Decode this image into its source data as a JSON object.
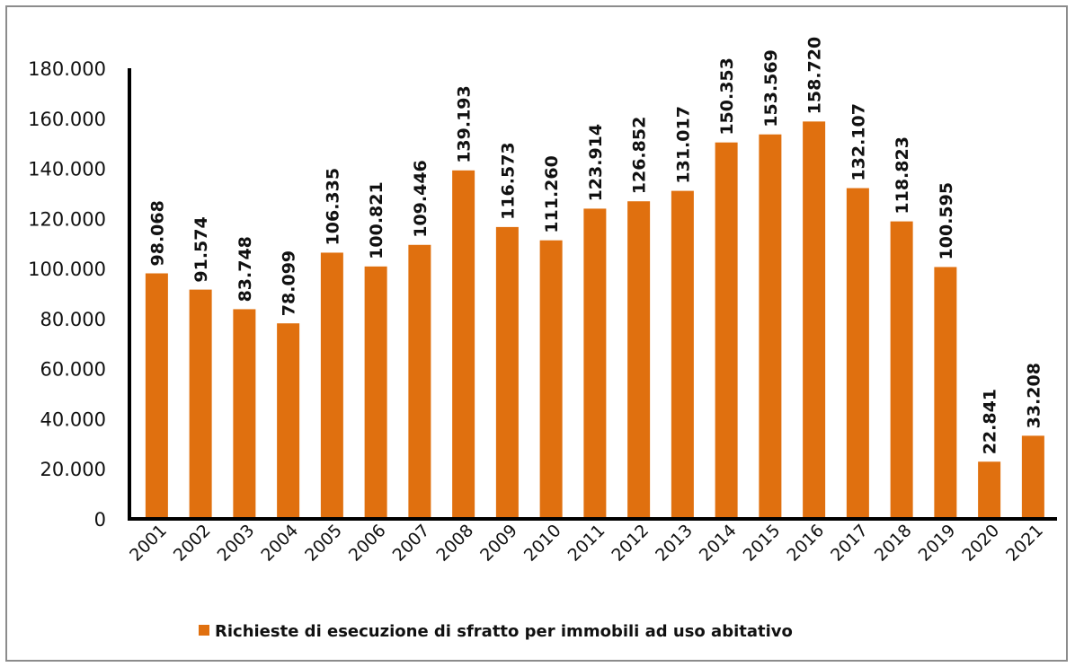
{
  "chart_data": {
    "type": "bar",
    "title": "",
    "xlabel": "",
    "ylabel": "",
    "ylim": [
      0,
      180000
    ],
    "yticks": [
      0,
      20000,
      40000,
      60000,
      80000,
      100000,
      120000,
      140000,
      160000,
      180000
    ],
    "ytick_labels": [
      "0",
      "20.000",
      "40.000",
      "60.000",
      "80.000",
      "100.000",
      "120.000",
      "140.000",
      "160.000",
      "180.000"
    ],
    "grid": false,
    "legend_position": "bottom",
    "categories": [
      "2001",
      "2002",
      "2003",
      "2004",
      "2005",
      "2006",
      "2007",
      "2008",
      "2009",
      "2010",
      "2011",
      "2012",
      "2013",
      "2014",
      "2015",
      "2016",
      "2017",
      "2018",
      "2019",
      "2020",
      "2021"
    ],
    "series": [
      {
        "name": "Richieste di esecuzione di sfratto per immobili ad uso abitativo",
        "color": "#E0700F",
        "values": [
          98068,
          91574,
          83748,
          78099,
          106335,
          100821,
          109446,
          139193,
          116573,
          111260,
          123914,
          126852,
          131017,
          150353,
          153569,
          158720,
          132107,
          118823,
          100595,
          22841,
          33208
        ],
        "data_labels": [
          "98.068",
          "91.574",
          "83.748",
          "78.099",
          "106.335",
          "100.821",
          "109.446",
          "139.193",
          "116.573",
          "111.260",
          "123.914",
          "126.852",
          "131.017",
          "150.353",
          "153.569",
          "158.720",
          "132.107",
          "118.823",
          "100.595",
          "22.841",
          "33.208"
        ]
      }
    ]
  }
}
